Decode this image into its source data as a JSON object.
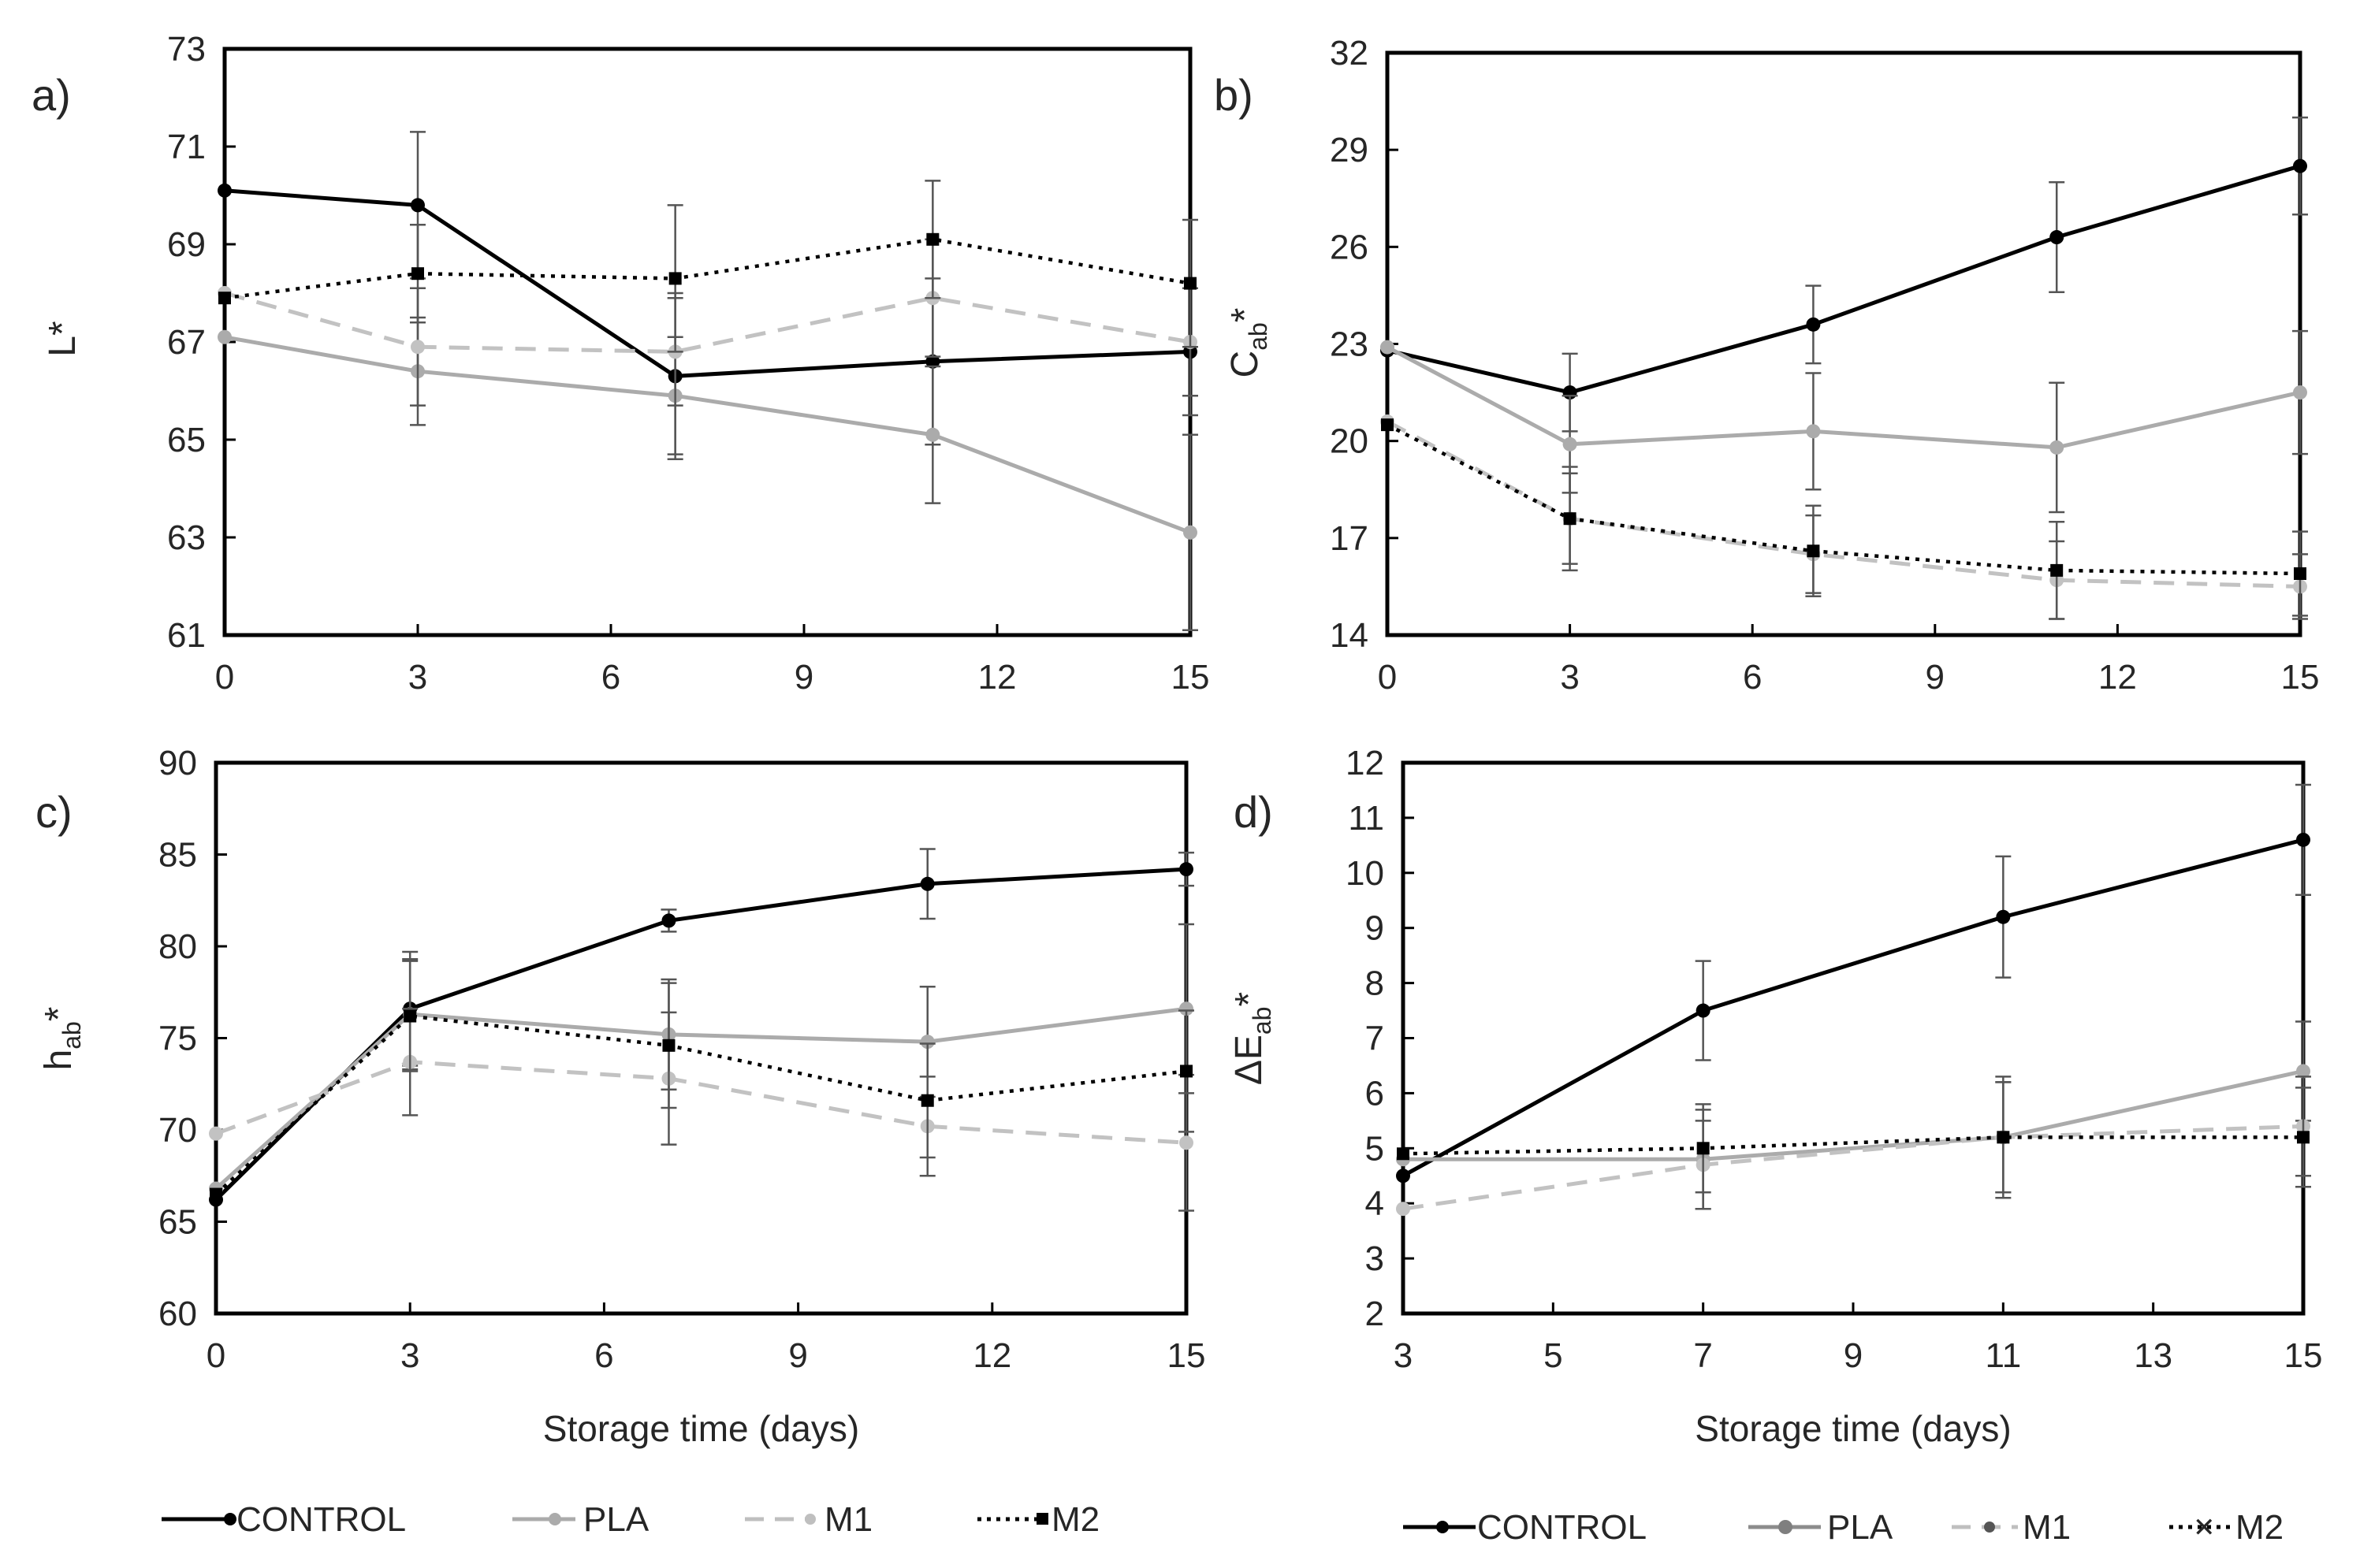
{
  "figure": {
    "legend_left": [
      "CONTROL",
      "PLA",
      "M1",
      "M2"
    ],
    "legend_right": [
      "CONTROL",
      "PLA",
      "M1",
      "M2"
    ]
  },
  "chart_data": [
    {
      "type": "line",
      "panel_label": "a)",
      "ylabel": "L*",
      "ylabel_main": "L*",
      "ylabel_sub": "",
      "ylabel_tail": "",
      "xlabel": "",
      "x": [
        0,
        3,
        7,
        11,
        15
      ],
      "xticks": [
        "0",
        "3",
        "6",
        "9",
        "12",
        "15"
      ],
      "xlim": [
        0,
        15
      ],
      "yticks": [
        "61",
        "63",
        "65",
        "67",
        "69",
        "71",
        "73"
      ],
      "ylim": [
        61,
        73
      ],
      "series": [
        {
          "name": "CONTROL",
          "values": [
            70.1,
            69.8,
            66.3,
            66.6,
            66.8
          ],
          "err": [
            0,
            1.5,
            1.7,
            1.7,
            1.3
          ]
        },
        {
          "name": "PLA",
          "values": [
            67.1,
            66.4,
            65.9,
            65.1,
            63.1
          ],
          "err": [
            0,
            1.1,
            1.2,
            1.4,
            2.0
          ]
        },
        {
          "name": "M1",
          "values": [
            68.0,
            66.9,
            66.8,
            67.9,
            67.0
          ],
          "err": [
            0,
            1.2,
            1.1,
            1.2,
            1.1
          ]
        },
        {
          "name": "M2",
          "values": [
            67.9,
            68.4,
            68.3,
            69.1,
            68.2
          ],
          "err": [
            0,
            1.0,
            1.5,
            1.2,
            1.3
          ]
        }
      ]
    },
    {
      "type": "line",
      "panel_label": "b)",
      "ylabel": "Cab*",
      "ylabel_main": "C",
      "ylabel_sub": "ab",
      "ylabel_tail": "*",
      "xlabel": "",
      "x": [
        0,
        3,
        7,
        11,
        15
      ],
      "xticks": [
        "0",
        "3",
        "6",
        "9",
        "12",
        "15"
      ],
      "xlim": [
        0,
        15
      ],
      "yticks": [
        "14",
        "17",
        "20",
        "23",
        "26",
        "29",
        "32"
      ],
      "ylim": [
        14,
        32
      ],
      "series": [
        {
          "name": "CONTROL",
          "values": [
            22.8,
            21.5,
            23.6,
            26.3,
            28.5
          ],
          "err": [
            0,
            1.2,
            1.2,
            1.7,
            1.5
          ]
        },
        {
          "name": "PLA",
          "values": [
            22.9,
            19.9,
            20.3,
            19.8,
            21.5
          ],
          "err": [
            0,
            1.5,
            1.8,
            2.0,
            1.9
          ]
        },
        {
          "name": "M1",
          "values": [
            20.6,
            17.6,
            16.5,
            15.7,
            15.5
          ],
          "err": [
            0,
            1.4,
            1.2,
            1.2,
            1.0
          ]
        },
        {
          "name": "M2",
          "values": [
            20.5,
            17.6,
            16.6,
            16.0,
            15.9
          ],
          "err": [
            0,
            1.6,
            1.4,
            1.5,
            1.3
          ]
        }
      ]
    },
    {
      "type": "line",
      "panel_label": "c)",
      "ylabel": "hab*",
      "ylabel_main": "h",
      "ylabel_sub": "ab",
      "ylabel_tail": "*",
      "xlabel": "Storage time (days)",
      "x": [
        0,
        3,
        7,
        11,
        15
      ],
      "xticks": [
        "0",
        "3",
        "6",
        "9",
        "12",
        "15"
      ],
      "xlim": [
        0,
        15
      ],
      "yticks": [
        "60",
        "65",
        "70",
        "75",
        "80",
        "85",
        "90"
      ],
      "ylim": [
        60,
        90
      ],
      "series": [
        {
          "name": "CONTROL",
          "values": [
            66.2,
            76.6,
            81.4,
            83.4,
            84.2
          ],
          "err": [
            0,
            3.1,
            0.6,
            1.9,
            0.9
          ]
        },
        {
          "name": "PLA",
          "values": [
            66.8,
            76.3,
            75.2,
            74.8,
            76.6
          ],
          "err": [
            0,
            3.0,
            3.0,
            3.0,
            4.6
          ]
        },
        {
          "name": "M1",
          "values": [
            69.8,
            73.7,
            72.8,
            70.2,
            69.3
          ],
          "err": [
            0,
            2.9,
            3.6,
            2.7,
            3.7
          ]
        },
        {
          "name": "M2",
          "values": [
            66.5,
            76.2,
            74.6,
            71.6,
            73.2
          ],
          "err": [
            0,
            3.0,
            3.4,
            3.1,
            3.3
          ]
        }
      ]
    },
    {
      "type": "line",
      "panel_label": "d)",
      "ylabel": "ΔEab*",
      "ylabel_main": "ΔE",
      "ylabel_sub": "ab",
      "ylabel_tail": "*",
      "xlabel": "Storage time (days)",
      "x": [
        3,
        7,
        11,
        15
      ],
      "xticks": [
        "3",
        "5",
        "7",
        "9",
        "11",
        "13",
        "15"
      ],
      "xlim": [
        3,
        15
      ],
      "yticks": [
        "2",
        "3",
        "4",
        "5",
        "6",
        "7",
        "8",
        "9",
        "10",
        "11",
        "12"
      ],
      "ylim": [
        2,
        12
      ],
      "series": [
        {
          "name": "CONTROL",
          "values": [
            4.5,
            7.5,
            9.2,
            10.6
          ],
          "err": [
            0,
            0.9,
            1.1,
            1.0
          ]
        },
        {
          "name": "PLA",
          "values": [
            4.8,
            4.8,
            5.2,
            6.4
          ],
          "err": [
            0,
            0.9,
            1.1,
            0.9
          ]
        },
        {
          "name": "M1",
          "values": [
            3.9,
            4.7,
            5.2,
            5.4
          ],
          "err": [
            0,
            0.8,
            1.0,
            0.9
          ]
        },
        {
          "name": "M2",
          "values": [
            4.9,
            5.0,
            5.2,
            5.2
          ],
          "err": [
            0,
            0.8,
            1.0,
            0.9
          ]
        }
      ]
    }
  ]
}
